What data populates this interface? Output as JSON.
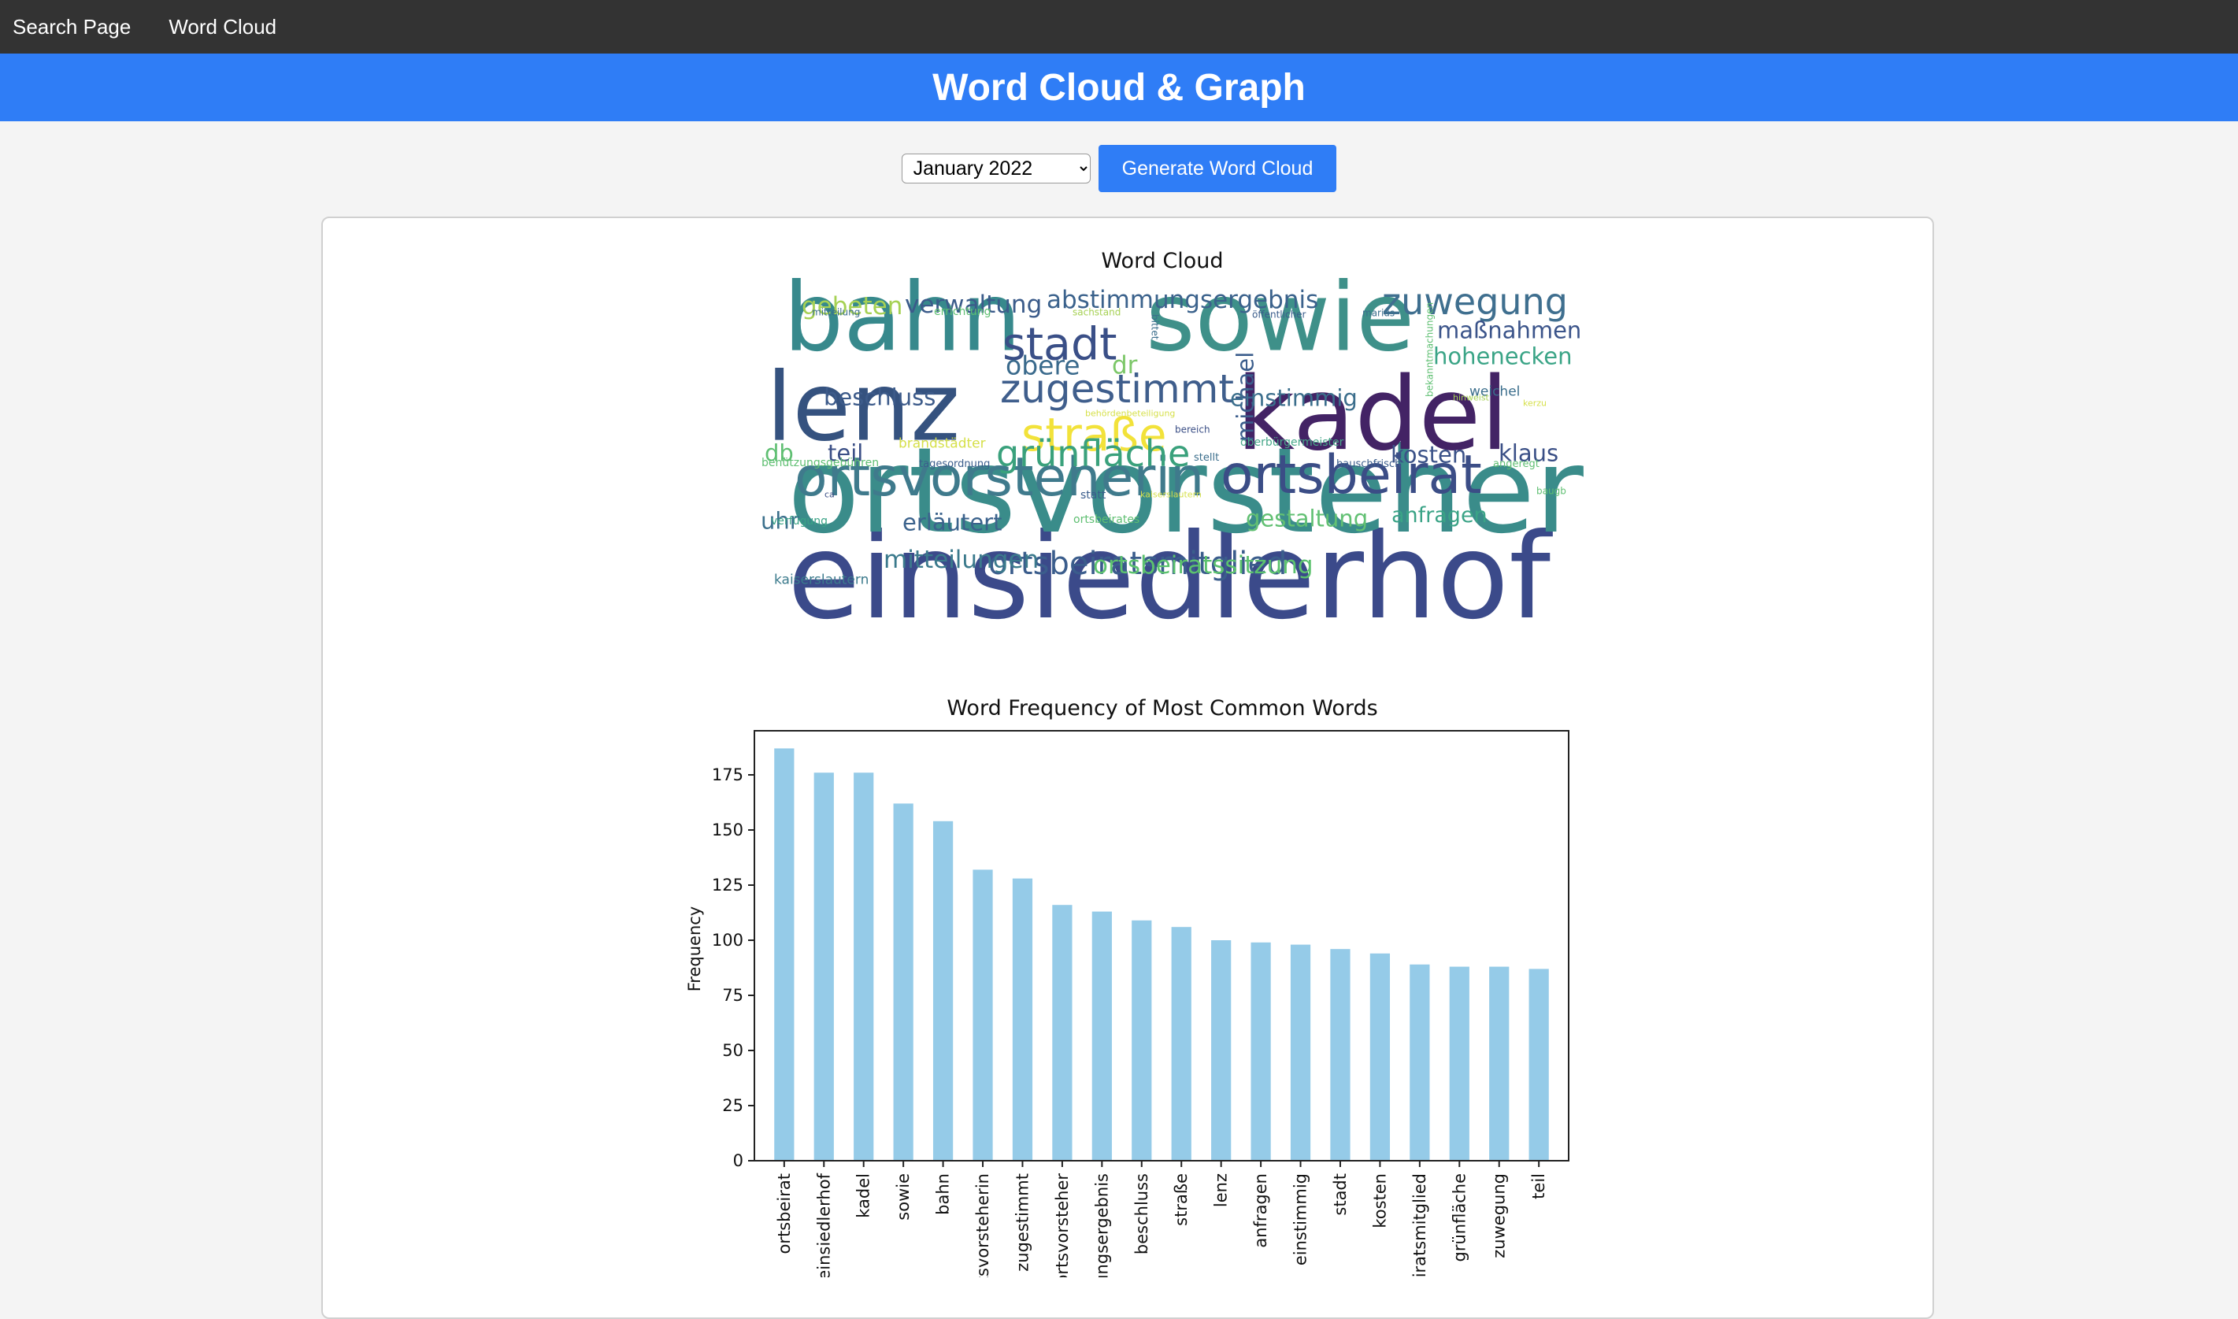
{
  "nav": {
    "items": [
      "Search Page",
      "Word Cloud"
    ]
  },
  "banner": {
    "title": "Word Cloud & Graph"
  },
  "controls": {
    "month_options": [
      "January 2022"
    ],
    "selected_month": "January 2022",
    "generate_label": "Generate Word Cloud"
  },
  "wordcloud": {
    "title": "Word Cloud",
    "words": [
      {
        "text": "einsiedlerhof",
        "color": "#3b4a8a"
      },
      {
        "text": "ortsvorsteher",
        "color": "#3a8c8a"
      },
      {
        "text": "kadel",
        "color": "#432365"
      },
      {
        "text": "sowie",
        "color": "#3e9089"
      },
      {
        "text": "bahn",
        "color": "#37898c"
      },
      {
        "text": "lenz",
        "color": "#35527f"
      },
      {
        "text": "ortsvorsteherin",
        "color": "#3f7a8c"
      },
      {
        "text": "ortsbeirat",
        "color": "#3b4d86"
      },
      {
        "text": "stadt",
        "color": "#3a4f87"
      },
      {
        "text": "zugestimmt",
        "color": "#3f5e8c"
      },
      {
        "text": "straße",
        "color": "#f2e23a"
      },
      {
        "text": "grünfläche",
        "color": "#3aa17c"
      },
      {
        "text": "zuwegung",
        "color": "#3f6f8f"
      },
      {
        "text": "ortsbeiratsmitglied",
        "color": "#3b5d8c"
      },
      {
        "text": "ortsbeiratssitzung",
        "color": "#5cc26e"
      },
      {
        "text": "mitteilungen",
        "color": "#3b7a8c"
      },
      {
        "text": "verwaltung",
        "color": "#3b5b8a"
      },
      {
        "text": "abstimmungsergebnis",
        "color": "#3b628c"
      },
      {
        "text": "gebeten",
        "color": "#a6d154"
      },
      {
        "text": "obere",
        "color": "#3a6a8c"
      },
      {
        "text": "dr",
        "color": "#7cc768"
      },
      {
        "text": "beschluss",
        "color": "#3d5b8a"
      },
      {
        "text": "michael",
        "color": "#3b5d8c"
      },
      {
        "text": "einstimmig",
        "color": "#3b6e8c"
      },
      {
        "text": "maßnahmen",
        "color": "#3b548a"
      },
      {
        "text": "hohenecken",
        "color": "#3aa486"
      },
      {
        "text": "teil",
        "color": "#3b4f86"
      },
      {
        "text": "db",
        "color": "#5fbf72"
      },
      {
        "text": "kosten",
        "color": "#3b5288"
      },
      {
        "text": "klaus",
        "color": "#3a4f86"
      },
      {
        "text": "uhr",
        "color": "#3b708c"
      },
      {
        "text": "erläutert",
        "color": "#3b628c"
      },
      {
        "text": "gestaltung",
        "color": "#62c073"
      },
      {
        "text": "anfragen",
        "color": "#3aa386"
      },
      {
        "text": "weichel",
        "color": "#3b6e8c"
      },
      {
        "text": "brandstädter",
        "color": "#d6e04a"
      },
      {
        "text": "benützungsgebühren",
        "color": "#5fbf72"
      },
      {
        "text": "tagesordnung",
        "color": "#3b5d8c"
      },
      {
        "text": "oberbürgermeister",
        "color": "#48a88a"
      },
      {
        "text": "bauschfrisch",
        "color": "#3b5d8c"
      },
      {
        "text": "angeregt",
        "color": "#5fbf72"
      },
      {
        "text": "kaiserslautern",
        "color": "#3b7a8c"
      },
      {
        "text": "verfügung",
        "color": "#3aa386"
      },
      {
        "text": "ortsbeirates",
        "color": "#5fbf72"
      },
      {
        "text": "mitteilung",
        "color": "#3b6e8c"
      },
      {
        "text": "errichtung",
        "color": "#5fbf72"
      },
      {
        "text": "sachstand",
        "color": "#a6d154"
      },
      {
        "text": "öffentlicher",
        "color": "#3b5d8c"
      },
      {
        "text": "marius",
        "color": "#3b6e8c"
      },
      {
        "text": "bereich",
        "color": "#3b4f86"
      },
      {
        "text": "stellt",
        "color": "#3b6e8c"
      },
      {
        "text": "statt",
        "color": "#3b5d8c"
      },
      {
        "text": "ca",
        "color": "#3b4f86"
      },
      {
        "text": "baugb",
        "color": "#5fbf72"
      },
      {
        "text": "behördenbeteiligung",
        "color": "#d6e04a"
      },
      {
        "text": "bittet",
        "color": "#3b6e8c"
      },
      {
        "text": "bekanntmachungen",
        "color": "#5fbf72"
      },
      {
        "text": "hinweist",
        "color": "#a6d154"
      },
      {
        "text": "kaiserslautern",
        "color": "#d6e04a"
      },
      {
        "text": "kerzu",
        "color": "#d6e04a"
      }
    ]
  },
  "chart_data": {
    "type": "bar",
    "title": "Word Frequency of Most Common Words",
    "xlabel": "",
    "ylabel": "Frequency",
    "ylim": [
      0,
      195
    ],
    "yticks": [
      0,
      25,
      50,
      75,
      100,
      125,
      150,
      175
    ],
    "bar_color": "#95cbe8",
    "categories": [
      "ortsbeirat",
      "einsiedlerhof",
      "kadel",
      "sowie",
      "bahn",
      "ortsvorsteherin",
      "zugestimmt",
      "ortsvorsteher",
      "abstimmungsergebnis",
      "beschluss",
      "straße",
      "lenz",
      "anfragen",
      "einstimmig",
      "stadt",
      "kosten",
      "ortsbeiratsmitglied",
      "grünfläche",
      "zuwegung",
      "teil"
    ],
    "values": [
      187,
      176,
      176,
      162,
      154,
      132,
      128,
      116,
      113,
      109,
      106,
      100,
      99,
      98,
      96,
      94,
      89,
      88,
      88,
      87
    ],
    "grid": false,
    "legend": "none"
  }
}
